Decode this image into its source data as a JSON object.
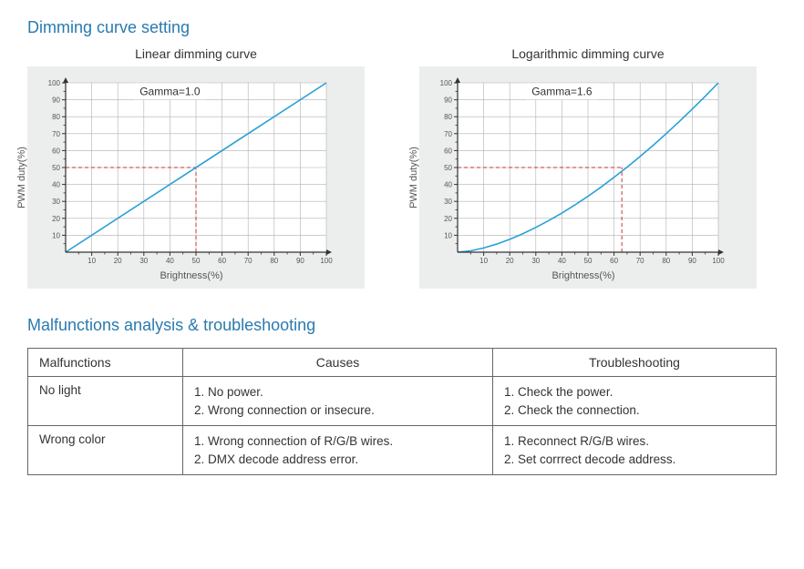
{
  "section1_title": "Dimming curve setting",
  "section1_title_color": "#2a7ab0",
  "section2_title": "Malfunctions analysis & troubleshooting",
  "section2_title_color": "#2a7ab0",
  "chart_common": {
    "xlabel": "Brightness(%)",
    "ylabel": "PWM duty(%)",
    "xlim": [
      0,
      100
    ],
    "xtick_step": 10,
    "ylim": [
      0,
      100
    ],
    "ytick_step": 10,
    "background_color": "#eceded",
    "plot_background": "#ffffff",
    "grid_color": "#b0b0b0",
    "axis_color": "#333333",
    "line_color": "#2aa0d8",
    "line_width": 1.6,
    "guide_color": "#cc3333",
    "guide_dash": "4,3",
    "tick_fontsize": 8,
    "label_fontsize": 11,
    "gamma_fontsize": 12
  },
  "charts": [
    {
      "title": "Linear dimming curve",
      "type": "line",
      "gamma_label": "Gamma=1.0",
      "curve_points": [
        [
          0,
          0
        ],
        [
          100,
          100
        ]
      ],
      "guide_x": 50,
      "guide_y": 50
    },
    {
      "title": "Logarithmic dimming curve",
      "type": "line",
      "gamma_label": "Gamma=1.6",
      "curve_points": [
        [
          0,
          0
        ],
        [
          5,
          0.8
        ],
        [
          10,
          2.5
        ],
        [
          15,
          4.8
        ],
        [
          20,
          7.6
        ],
        [
          25,
          10.9
        ],
        [
          30,
          14.6
        ],
        [
          35,
          18.7
        ],
        [
          40,
          23.1
        ],
        [
          45,
          27.9
        ],
        [
          50,
          33.0
        ],
        [
          55,
          38.4
        ],
        [
          60,
          44.2
        ],
        [
          65,
          50.2
        ],
        [
          70,
          56.5
        ],
        [
          75,
          63.1
        ],
        [
          80,
          70.0
        ],
        [
          85,
          77.1
        ],
        [
          90,
          84.5
        ],
        [
          95,
          92.1
        ],
        [
          100,
          100
        ]
      ],
      "guide_x": 63,
      "guide_y": 50
    }
  ],
  "trouble_table": {
    "columns": [
      "Malfunctions",
      "Causes",
      "Troubleshooting"
    ],
    "rows": [
      {
        "malfunction": "No light",
        "causes": "1. No power.\n2. Wrong connection or insecure.",
        "troubleshooting": "1. Check the power.\n2. Check the connection."
      },
      {
        "malfunction": "Wrong color",
        "causes": "1. Wrong connection of R/G/B wires.\n2. DMX decode address error.",
        "troubleshooting": "1.  Reconnect R/G/B wires.\n2. Set corrrect decode address."
      }
    ]
  }
}
